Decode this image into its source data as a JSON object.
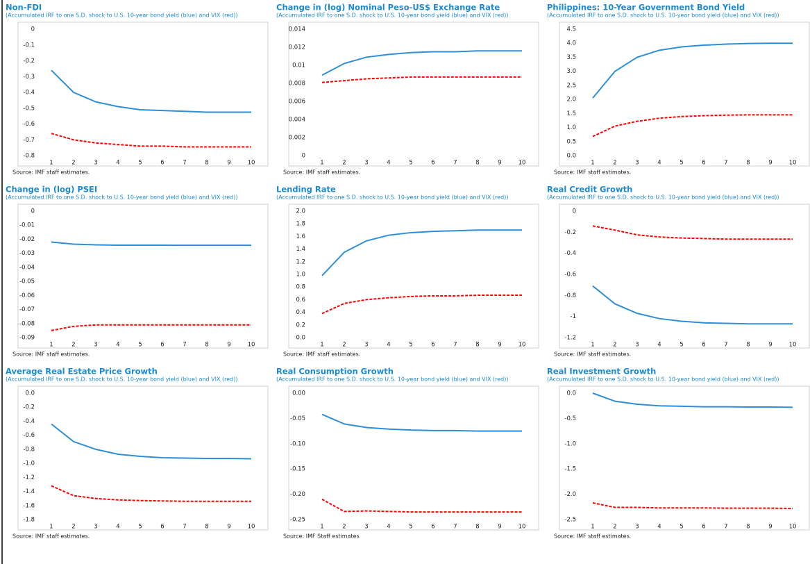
{
  "chart_data": [
    {
      "type": "line",
      "title": "Non-FDI",
      "subtitle": "(Accumulated IRF to one S.D. shock to U.S. 10-year bond yield (blue) and VIX (red))",
      "source": "Source: IMF staff estimates.",
      "categories": [
        1,
        2,
        3,
        4,
        5,
        6,
        7,
        8,
        9,
        10
      ],
      "series": [
        {
          "color": "#2e8fd6",
          "dashed": false,
          "values": [
            -0.26,
            -0.4,
            -0.46,
            -0.49,
            -0.51,
            -0.515,
            -0.52,
            -0.525,
            -0.525,
            -0.525
          ]
        },
        {
          "color": "#ff0000",
          "dashed": true,
          "values": [
            -0.66,
            -0.7,
            -0.72,
            -0.73,
            -0.74,
            -0.74,
            -0.745,
            -0.745,
            -0.745,
            -0.745
          ]
        }
      ],
      "ylim": [
        -0.8,
        0
      ],
      "yticks": [
        0,
        -0.1,
        -0.2,
        -0.3,
        -0.4,
        -0.5,
        -0.6,
        -0.7,
        -0.8
      ]
    },
    {
      "type": "line",
      "title": "Change in (log) Nominal Peso-US$ Exchange Rate",
      "subtitle": "(Accumulated IRF to one S.D. shock to U.S. 10-year bond yield (blue) and VIX (red))",
      "source": "Source: IMF staff estimates.",
      "categories": [
        1,
        2,
        3,
        4,
        5,
        6,
        7,
        8,
        9,
        10
      ],
      "series": [
        {
          "color": "#2e8fd6",
          "dashed": false,
          "values": [
            0.0089,
            0.0102,
            0.0109,
            0.0112,
            0.0114,
            0.0115,
            0.0115,
            0.0116,
            0.0116,
            0.0116
          ]
        },
        {
          "color": "#ff0000",
          "dashed": true,
          "values": [
            0.0081,
            0.0083,
            0.0085,
            0.0086,
            0.0087,
            0.0087,
            0.0087,
            0.0087,
            0.0087,
            0.0087
          ]
        }
      ],
      "ylim": [
        0,
        0.014
      ],
      "yticks": [
        0,
        0.002,
        0.004,
        0.006,
        0.008,
        0.01,
        0.012,
        0.014
      ]
    },
    {
      "type": "line",
      "title": "Philippines: 10-Year Government Bond Yield",
      "subtitle": "(Accumulated IRF to one S.D. shock to U.S. 10-year bond yield (blue) and VIX (red))",
      "source": "Source: IMF staff estimates.",
      "categories": [
        1,
        2,
        3,
        4,
        5,
        6,
        7,
        8,
        9,
        10
      ],
      "series": [
        {
          "color": "#2e8fd6",
          "dashed": false,
          "values": [
            2.05,
            3.0,
            3.5,
            3.75,
            3.87,
            3.93,
            3.97,
            3.99,
            4.0,
            4.0
          ]
        },
        {
          "color": "#ff0000",
          "dashed": true,
          "values": [
            0.68,
            1.05,
            1.22,
            1.33,
            1.39,
            1.42,
            1.44,
            1.45,
            1.45,
            1.45
          ]
        }
      ],
      "ylim": [
        0,
        4.5
      ],
      "yticks": [
        {
          "value": 0,
          "label": "0.0"
        },
        0.5,
        {
          "value": 1,
          "label": "1.0"
        },
        1.5,
        {
          "value": 2,
          "label": "2.0"
        },
        2.5,
        {
          "value": 3,
          "label": "3.0"
        },
        3.5,
        {
          "value": 4,
          "label": "4.0"
        },
        4.5
      ]
    },
    {
      "type": "line",
      "title": "Change in (log) PSEI",
      "subtitle": "(Accumulated IRF to one S.D. shock to U.S. 10-year bond yield (blue) and VIX (red))",
      "source": "Source: IMF staff estimates.",
      "categories": [
        1,
        2,
        3,
        4,
        5,
        6,
        7,
        8,
        9,
        10
      ],
      "series": [
        {
          "color": "#2e8fd6",
          "dashed": false,
          "values": [
            -0.022,
            -0.0235,
            -0.024,
            -0.0242,
            -0.0242,
            -0.0242,
            -0.0243,
            -0.0243,
            -0.0243,
            -0.0243
          ]
        },
        {
          "color": "#ff0000",
          "dashed": true,
          "values": [
            -0.085,
            -0.082,
            -0.081,
            -0.081,
            -0.081,
            -0.081,
            -0.081,
            -0.081,
            -0.081,
            -0.081
          ]
        }
      ],
      "ylim": [
        -0.09,
        0
      ],
      "yticks": [
        0,
        -0.01,
        -0.02,
        -0.03,
        -0.04,
        -0.05,
        -0.06,
        -0.07,
        -0.08,
        -0.09
      ]
    },
    {
      "type": "line",
      "title": "Lending Rate",
      "subtitle": "(Accumulated IRF to one S.D. shock to U.S. 10-year bond yield (blue) and VIX (red))",
      "source": "Source: IMF staff estimates.",
      "categories": [
        1,
        2,
        3,
        4,
        5,
        6,
        7,
        8,
        9,
        10
      ],
      "series": [
        {
          "color": "#2e8fd6",
          "dashed": false,
          "values": [
            0.98,
            1.35,
            1.53,
            1.62,
            1.66,
            1.68,
            1.69,
            1.7,
            1.7,
            1.7
          ]
        },
        {
          "color": "#ff0000",
          "dashed": true,
          "values": [
            0.38,
            0.54,
            0.6,
            0.63,
            0.65,
            0.66,
            0.66,
            0.67,
            0.67,
            0.67
          ]
        }
      ],
      "ylim": [
        0,
        2
      ],
      "yticks": [
        {
          "value": 0,
          "label": "0.0"
        },
        0.2,
        0.4,
        0.6,
        0.8,
        {
          "value": 1,
          "label": "1.0"
        },
        1.2,
        1.4,
        1.6,
        1.8,
        {
          "value": 2,
          "label": "2.0"
        }
      ]
    },
    {
      "type": "line",
      "title": "Real Credit Growth",
      "subtitle": "(Accumulated IRF to one S.D. shock to U.S. 10-year bond yield (blue) and VIX (red))",
      "source": "Source: IMF staff estimates.",
      "categories": [
        1,
        2,
        3,
        4,
        5,
        6,
        7,
        8,
        9,
        10
      ],
      "series": [
        {
          "color": "#2e8fd6",
          "dashed": false,
          "values": [
            -0.71,
            -0.88,
            -0.97,
            -1.02,
            -1.045,
            -1.06,
            -1.065,
            -1.07,
            -1.07,
            -1.07
          ]
        },
        {
          "color": "#ff0000",
          "dashed": true,
          "values": [
            -0.14,
            -0.18,
            -0.225,
            -0.245,
            -0.255,
            -0.26,
            -0.265,
            -0.265,
            -0.265,
            -0.265
          ]
        }
      ],
      "ylim": [
        -1.2,
        0
      ],
      "yticks": [
        0,
        -0.2,
        -0.4,
        -0.6,
        -0.8,
        -1,
        -1.2
      ]
    },
    {
      "type": "line",
      "title": "Average Real Estate Price Growth",
      "subtitle": "(Accumulated IRF to one S.D. shock to U.S. 10-year bond yield (blue) and VIX (red))",
      "source": "Source: IMF staff estimates.",
      "categories": [
        1,
        2,
        3,
        4,
        5,
        6,
        7,
        8,
        9,
        10
      ],
      "series": [
        {
          "color": "#2e8fd6",
          "dashed": false,
          "values": [
            -0.44,
            -0.69,
            -0.8,
            -0.87,
            -0.9,
            -0.92,
            -0.925,
            -0.93,
            -0.93,
            -0.935
          ]
        },
        {
          "color": "#ff0000",
          "dashed": true,
          "values": [
            -1.32,
            -1.46,
            -1.5,
            -1.52,
            -1.53,
            -1.535,
            -1.54,
            -1.54,
            -1.54,
            -1.54
          ]
        }
      ],
      "ylim": [
        -1.8,
        0
      ],
      "yticks": [
        {
          "value": 0,
          "label": "0.0"
        },
        -0.2,
        -0.4,
        -0.6,
        -0.8,
        {
          "value": -1,
          "label": "-1.0"
        },
        -1.2,
        -1.4,
        -1.6,
        -1.8
      ]
    },
    {
      "type": "line",
      "title": "Real Consumption Growth",
      "subtitle": "(Accumulated IRF to one S.D. shock to U.S. 10-year bond yield (blue) and VIX (red))",
      "source": "Source: IMF Staff estimates",
      "categories": [
        1,
        2,
        3,
        4,
        5,
        6,
        7,
        8,
        9,
        10
      ],
      "series": [
        {
          "color": "#2e8fd6",
          "dashed": false,
          "values": [
            -0.042,
            -0.061,
            -0.068,
            -0.071,
            -0.073,
            -0.074,
            -0.074,
            -0.075,
            -0.075,
            -0.075
          ]
        },
        {
          "color": "#ff0000",
          "dashed": true,
          "values": [
            -0.21,
            -0.234,
            -0.233,
            -0.234,
            -0.235,
            -0.235,
            -0.235,
            -0.235,
            -0.235,
            -0.235
          ]
        }
      ],
      "ylim": [
        -0.25,
        0
      ],
      "yticks": [
        {
          "value": 0,
          "label": "0.00"
        },
        -0.05,
        {
          "value": -0.1,
          "label": "-0.10"
        },
        -0.15,
        {
          "value": -0.2,
          "label": "-0.20"
        },
        -0.25
      ]
    },
    {
      "type": "line",
      "title": "Real Investment Growth",
      "subtitle": "(Accumulated IRF to one S.D. shock to U.S. 10-year bond yield (blue) and VIX (red))",
      "source": "Source: IMF staff estimates.",
      "categories": [
        1,
        2,
        3,
        4,
        5,
        6,
        7,
        8,
        9,
        10
      ],
      "series": [
        {
          "color": "#2e8fd6",
          "dashed": false,
          "values": [
            0,
            -0.16,
            -0.22,
            -0.25,
            -0.26,
            -0.27,
            -0.27,
            -0.275,
            -0.275,
            -0.28
          ]
        },
        {
          "color": "#ff0000",
          "dashed": true,
          "values": [
            -2.17,
            -2.26,
            -2.26,
            -2.27,
            -2.27,
            -2.27,
            -2.275,
            -2.275,
            -2.275,
            -2.28
          ]
        }
      ],
      "ylim": [
        -2.5,
        0
      ],
      "yticks": [
        {
          "value": 0,
          "label": "0.0"
        },
        -0.5,
        {
          "value": -1,
          "label": "-1.0"
        },
        -1.5,
        {
          "value": -2,
          "label": "-2.0"
        },
        -2.5
      ]
    }
  ]
}
